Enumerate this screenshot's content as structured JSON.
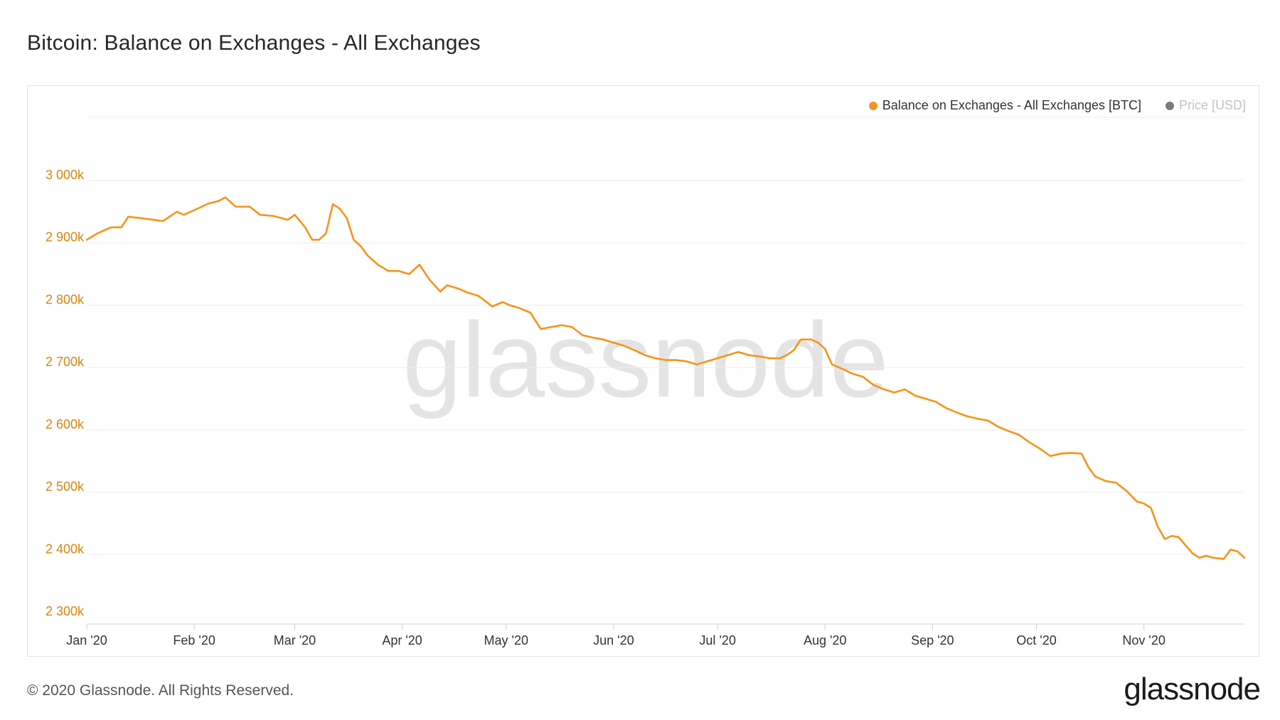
{
  "title": "Bitcoin: Balance on Exchanges - All Exchanges",
  "footer": "© 2020 Glassnode. All Rights Reserved.",
  "brand": "glassnode",
  "watermark": "glassnode",
  "legend": [
    {
      "label": "Balance on Exchanges - All Exchanges [BTC]",
      "color": "#f7931a"
    },
    {
      "label": "Price [USD]",
      "color": "#7a7a7a"
    }
  ],
  "colors": {
    "series": "#f7931a",
    "y_axis_text": "#d9850f",
    "grid": "#ededed",
    "watermark": "#e4e4e4"
  },
  "chart_data": {
    "type": "line",
    "title": "Bitcoin: Balance on Exchanges - All Exchanges",
    "xlabel": "",
    "ylabel": "",
    "ylim": [
      2300000,
      3000000
    ],
    "y_ticks": [
      {
        "value": 2300000,
        "label": "2 300k"
      },
      {
        "value": 2400000,
        "label": "2 400k"
      },
      {
        "value": 2500000,
        "label": "2 500k"
      },
      {
        "value": 2600000,
        "label": "2 600k"
      },
      {
        "value": 2700000,
        "label": "2 700k"
      },
      {
        "value": 2800000,
        "label": "2 800k"
      },
      {
        "value": 2900000,
        "label": "2 900k"
      },
      {
        "value": 3000000,
        "label": "3 000k"
      }
    ],
    "xlim": [
      "2020-01-01",
      "2020-11-30"
    ],
    "x_ticks": [
      {
        "date": "2020-01-01",
        "label": "Jan '20"
      },
      {
        "date": "2020-02-01",
        "label": "Feb '20"
      },
      {
        "date": "2020-03-01",
        "label": "Mar '20"
      },
      {
        "date": "2020-04-01",
        "label": "Apr '20"
      },
      {
        "date": "2020-05-01",
        "label": "May '20"
      },
      {
        "date": "2020-06-01",
        "label": "Jun '20"
      },
      {
        "date": "2020-07-01",
        "label": "Jul '20"
      },
      {
        "date": "2020-08-01",
        "label": "Aug '20"
      },
      {
        "date": "2020-09-01",
        "label": "Sep '20"
      },
      {
        "date": "2020-10-01",
        "label": "Oct '20"
      },
      {
        "date": "2020-11-01",
        "label": "Nov '20"
      }
    ],
    "grid": true,
    "legend_position": "top-right",
    "series": [
      {
        "name": "Balance on Exchanges - All Exchanges [BTC]",
        "color": "#f7931a",
        "points": [
          [
            "2020-01-01",
            2905000
          ],
          [
            "2020-01-04",
            2915000
          ],
          [
            "2020-01-08",
            2925000
          ],
          [
            "2020-01-11",
            2925000
          ],
          [
            "2020-01-13",
            2942000
          ],
          [
            "2020-01-16",
            2940000
          ],
          [
            "2020-01-19",
            2938000
          ],
          [
            "2020-01-23",
            2935000
          ],
          [
            "2020-01-27",
            2950000
          ],
          [
            "2020-01-29",
            2945000
          ],
          [
            "2020-02-02",
            2955000
          ],
          [
            "2020-02-05",
            2963000
          ],
          [
            "2020-02-08",
            2967000
          ],
          [
            "2020-02-10",
            2973000
          ],
          [
            "2020-02-13",
            2958000
          ],
          [
            "2020-02-17",
            2958000
          ],
          [
            "2020-02-20",
            2945000
          ],
          [
            "2020-02-24",
            2943000
          ],
          [
            "2020-02-28",
            2937000
          ],
          [
            "2020-03-01",
            2945000
          ],
          [
            "2020-03-04",
            2925000
          ],
          [
            "2020-03-06",
            2905000
          ],
          [
            "2020-03-08",
            2905000
          ],
          [
            "2020-03-10",
            2915000
          ],
          [
            "2020-03-12",
            2962000
          ],
          [
            "2020-03-14",
            2955000
          ],
          [
            "2020-03-16",
            2940000
          ],
          [
            "2020-03-18",
            2905000
          ],
          [
            "2020-03-20",
            2895000
          ],
          [
            "2020-03-22",
            2880000
          ],
          [
            "2020-03-25",
            2865000
          ],
          [
            "2020-03-28",
            2855000
          ],
          [
            "2020-03-31",
            2855000
          ],
          [
            "2020-04-03",
            2850000
          ],
          [
            "2020-04-06",
            2865000
          ],
          [
            "2020-04-09",
            2840000
          ],
          [
            "2020-04-12",
            2822000
          ],
          [
            "2020-04-14",
            2832000
          ],
          [
            "2020-04-17",
            2827000
          ],
          [
            "2020-04-20",
            2820000
          ],
          [
            "2020-04-23",
            2815000
          ],
          [
            "2020-04-27",
            2798000
          ],
          [
            "2020-04-30",
            2805000
          ],
          [
            "2020-05-02",
            2800000
          ],
          [
            "2020-05-05",
            2795000
          ],
          [
            "2020-05-08",
            2788000
          ],
          [
            "2020-05-11",
            2762000
          ],
          [
            "2020-05-14",
            2765000
          ],
          [
            "2020-05-17",
            2768000
          ],
          [
            "2020-05-20",
            2765000
          ],
          [
            "2020-05-23",
            2752000
          ],
          [
            "2020-05-26",
            2748000
          ],
          [
            "2020-05-29",
            2745000
          ],
          [
            "2020-06-01",
            2740000
          ],
          [
            "2020-06-04",
            2735000
          ],
          [
            "2020-06-07",
            2728000
          ],
          [
            "2020-06-10",
            2720000
          ],
          [
            "2020-06-13",
            2715000
          ],
          [
            "2020-06-16",
            2712000
          ],
          [
            "2020-06-19",
            2712000
          ],
          [
            "2020-06-22",
            2710000
          ],
          [
            "2020-06-25",
            2705000
          ],
          [
            "2020-06-28",
            2710000
          ],
          [
            "2020-07-01",
            2715000
          ],
          [
            "2020-07-04",
            2720000
          ],
          [
            "2020-07-07",
            2725000
          ],
          [
            "2020-07-10",
            2720000
          ],
          [
            "2020-07-13",
            2718000
          ],
          [
            "2020-07-16",
            2715000
          ],
          [
            "2020-07-19",
            2715000
          ],
          [
            "2020-07-21",
            2720000
          ],
          [
            "2020-07-23",
            2728000
          ],
          [
            "2020-07-25",
            2745000
          ],
          [
            "2020-07-28",
            2745000
          ],
          [
            "2020-07-30",
            2740000
          ],
          [
            "2020-08-01",
            2730000
          ],
          [
            "2020-08-03",
            2705000
          ],
          [
            "2020-08-06",
            2698000
          ],
          [
            "2020-08-09",
            2690000
          ],
          [
            "2020-08-12",
            2685000
          ],
          [
            "2020-08-15",
            2672000
          ],
          [
            "2020-08-18",
            2665000
          ],
          [
            "2020-08-21",
            2660000
          ],
          [
            "2020-08-24",
            2665000
          ],
          [
            "2020-08-27",
            2655000
          ],
          [
            "2020-08-30",
            2650000
          ],
          [
            "2020-09-02",
            2645000
          ],
          [
            "2020-09-05",
            2635000
          ],
          [
            "2020-09-08",
            2628000
          ],
          [
            "2020-09-11",
            2622000
          ],
          [
            "2020-09-14",
            2618000
          ],
          [
            "2020-09-17",
            2615000
          ],
          [
            "2020-09-20",
            2605000
          ],
          [
            "2020-09-23",
            2598000
          ],
          [
            "2020-09-26",
            2592000
          ],
          [
            "2020-09-29",
            2580000
          ],
          [
            "2020-10-02",
            2570000
          ],
          [
            "2020-10-05",
            2558000
          ],
          [
            "2020-10-08",
            2562000
          ],
          [
            "2020-10-11",
            2563000
          ],
          [
            "2020-10-14",
            2562000
          ],
          [
            "2020-10-16",
            2540000
          ],
          [
            "2020-10-18",
            2525000
          ],
          [
            "2020-10-21",
            2518000
          ],
          [
            "2020-10-24",
            2515000
          ],
          [
            "2020-10-27",
            2502000
          ],
          [
            "2020-10-30",
            2485000
          ],
          [
            "2020-11-01",
            2482000
          ],
          [
            "2020-11-03",
            2475000
          ],
          [
            "2020-11-05",
            2445000
          ],
          [
            "2020-11-07",
            2425000
          ],
          [
            "2020-11-09",
            2430000
          ],
          [
            "2020-11-11",
            2428000
          ],
          [
            "2020-11-13",
            2415000
          ],
          [
            "2020-11-15",
            2402000
          ],
          [
            "2020-11-17",
            2395000
          ],
          [
            "2020-11-19",
            2398000
          ],
          [
            "2020-11-21",
            2395000
          ],
          [
            "2020-11-24",
            2393000
          ],
          [
            "2020-11-26",
            2408000
          ],
          [
            "2020-11-28",
            2405000
          ],
          [
            "2020-11-30",
            2395000
          ]
        ]
      }
    ]
  }
}
